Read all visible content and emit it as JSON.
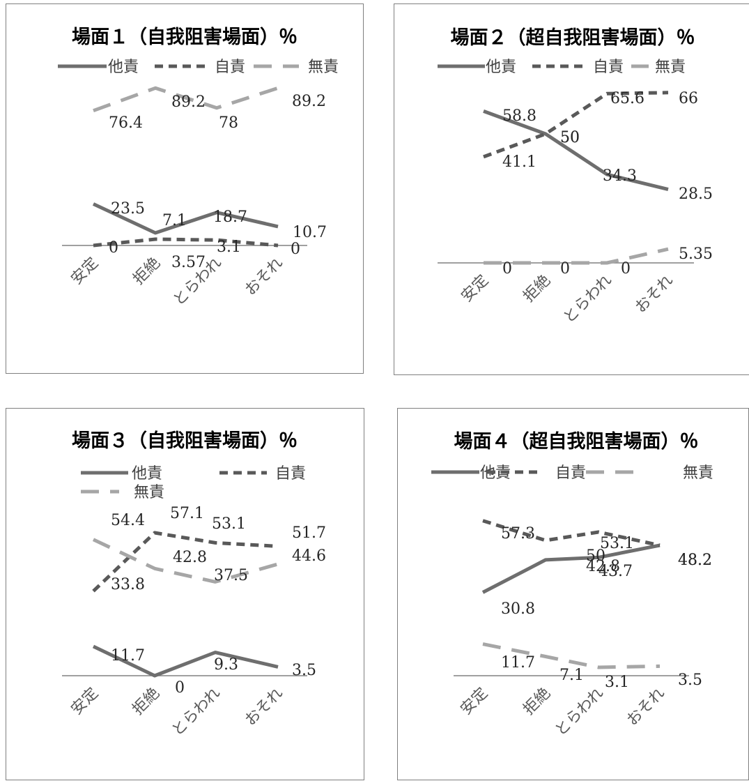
{
  "colors": {
    "他責": "#6e6e6e",
    "自責": "#595959",
    "無責": "#a6a6a6",
    "axis": "#808080"
  },
  "chart_data": [
    {
      "type": "line",
      "title": "場面１（自我阻害場面）％",
      "categories": [
        "安定",
        "拒絶",
        "とらわれ",
        "おそれ"
      ],
      "series": [
        {
          "name": "他責",
          "values": [
            23.5,
            7.1,
            18.7,
            10.7
          ],
          "style": "solid"
        },
        {
          "name": "自責",
          "values": [
            0,
            3.57,
            3.1,
            0
          ],
          "style": "dashed"
        },
        {
          "name": "無責",
          "values": [
            76.4,
            89.2,
            78,
            89.2
          ],
          "style": "longdash"
        }
      ],
      "ylim": [
        0,
        100
      ],
      "grid": false,
      "legend": "top"
    },
    {
      "type": "line",
      "title": "場面２（超自我阻害場面）％",
      "categories": [
        "安定",
        "拒絶",
        "とらわれ",
        "おそれ"
      ],
      "series": [
        {
          "name": "他責",
          "values": [
            58.8,
            50,
            34.3,
            28.5
          ],
          "style": "solid"
        },
        {
          "name": "自責",
          "values": [
            41.1,
            50,
            65.6,
            66
          ],
          "style": "dashed"
        },
        {
          "name": "無責",
          "values": [
            0,
            0,
            0,
            5.35
          ],
          "style": "longdash"
        }
      ],
      "ylim": [
        0,
        80
      ],
      "grid": false,
      "legend": "top"
    },
    {
      "type": "line",
      "title": "場面３（自我阻害場面）％",
      "categories": [
        "安定",
        "拒絶",
        "とらわれ",
        "おそれ"
      ],
      "series": [
        {
          "name": "他責",
          "values": [
            11.7,
            0,
            9.3,
            3.5
          ],
          "style": "solid"
        },
        {
          "name": "自責",
          "values": [
            33.8,
            57.1,
            53.1,
            51.7
          ],
          "style": "dashed"
        },
        {
          "name": "無責",
          "values": [
            54.4,
            42.8,
            37.5,
            44.6
          ],
          "style": "longdash"
        }
      ],
      "ylim": [
        0,
        70
      ],
      "grid": false,
      "legend": "top"
    },
    {
      "type": "line",
      "title": "場面４（超自我阻害場面）％",
      "categories": [
        "安定",
        "拒絶",
        "とらわれ",
        "おそれ"
      ],
      "series": [
        {
          "name": "他責",
          "values": [
            30.8,
            42.8,
            43.7,
            48.2
          ],
          "style": "solid"
        },
        {
          "name": "自責",
          "values": [
            57.3,
            50,
            53.1,
            48.2
          ],
          "style": "dashed"
        },
        {
          "name": "無責",
          "values": [
            11.7,
            7.1,
            3.1,
            3.5
          ],
          "style": "longdash"
        }
      ],
      "ylim": [
        0,
        70
      ],
      "grid": false,
      "legend": "top"
    }
  ]
}
